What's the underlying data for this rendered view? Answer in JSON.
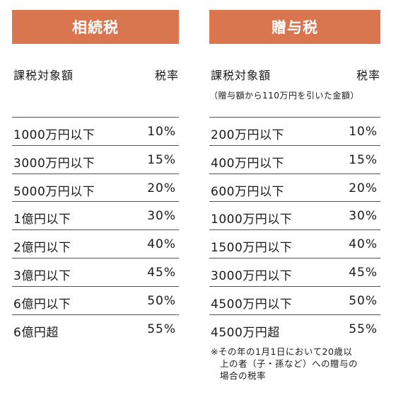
{
  "inheritance": {
    "title": "相続税",
    "col_amount": "課税対象額",
    "col_rate": "税率",
    "rows": [
      {
        "amount": "1000万円以下",
        "rate": "10%"
      },
      {
        "amount": "3000万円以下",
        "rate": "15%"
      },
      {
        "amount": "5000万円以下",
        "rate": "20%"
      },
      {
        "amount": "1億円以下",
        "rate": "30%"
      },
      {
        "amount": "2億円以下",
        "rate": "40%"
      },
      {
        "amount": "3億円以下",
        "rate": "45%"
      },
      {
        "amount": "6億円以下",
        "rate": "50%"
      },
      {
        "amount": "6億円超",
        "rate": "55%"
      }
    ]
  },
  "gift": {
    "title": "贈与税",
    "col_amount": "課税対象額",
    "col_rate": "税率",
    "subnote": "（贈与額から110万円を引いた金額）",
    "rows": [
      {
        "amount": "200万円以下",
        "rate": "10%"
      },
      {
        "amount": "400万円以下",
        "rate": "15%"
      },
      {
        "amount": "600万円以下",
        "rate": "20%"
      },
      {
        "amount": "1000万円以下",
        "rate": "30%"
      },
      {
        "amount": "1500万円以下",
        "rate": "40%"
      },
      {
        "amount": "3000万円以下",
        "rate": "45%"
      },
      {
        "amount": "4500万円以下",
        "rate": "50%"
      },
      {
        "amount": "4500万円超",
        "rate": "55%"
      }
    ],
    "footnote_lines": [
      "※その年の1月1日において20歳以",
      "上の者（子・孫など）への贈与の",
      "場合の税率"
    ]
  },
  "colors": {
    "banner": "#d9764f",
    "rule": "#555555"
  }
}
